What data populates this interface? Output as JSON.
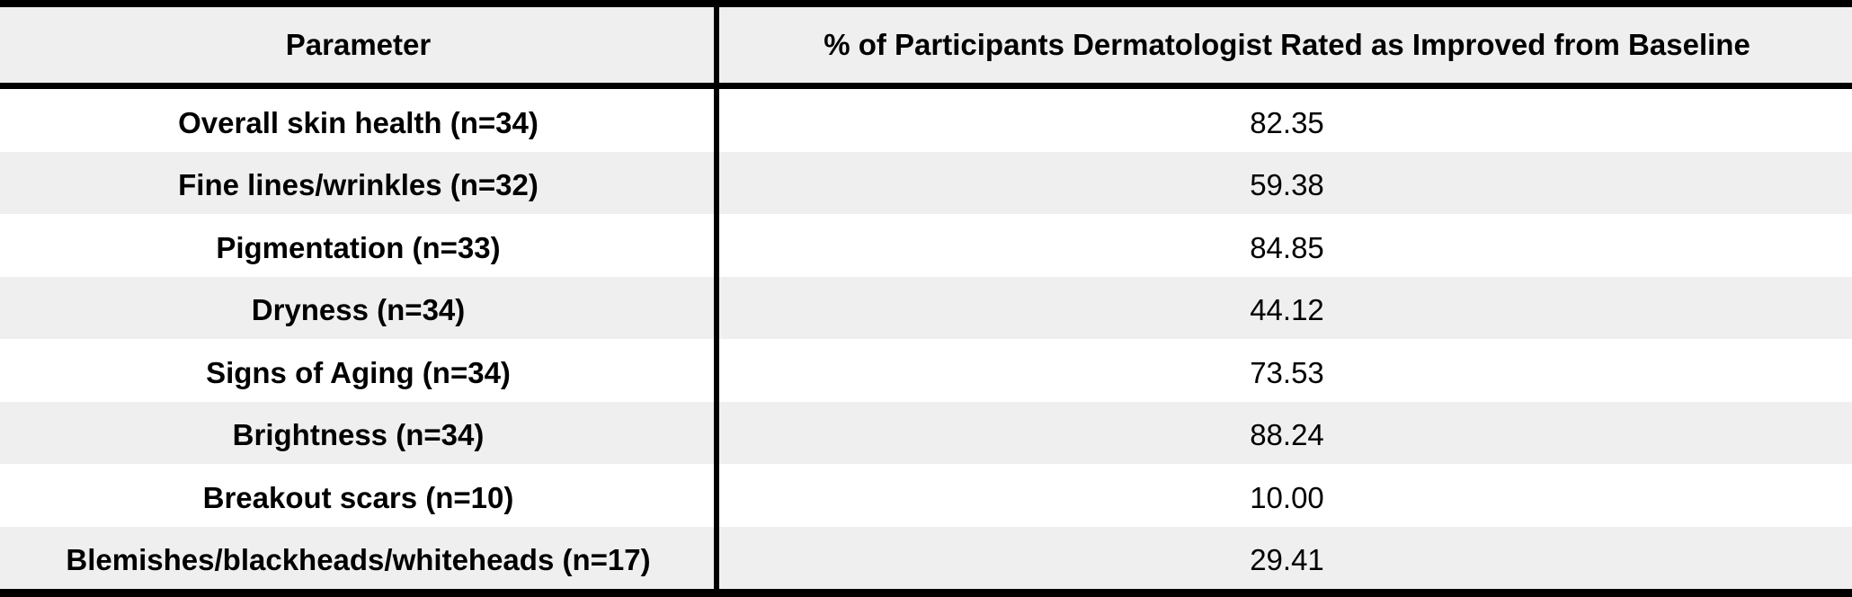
{
  "table": {
    "headers": {
      "parameter": "Parameter",
      "percent": "% of Participants Dermatologist Rated as Improved from Baseline"
    },
    "rows": [
      {
        "parameter": "Overall skin health (n=34)",
        "value": "82.35"
      },
      {
        "parameter": "Fine lines/wrinkles (n=32)",
        "value": "59.38"
      },
      {
        "parameter": "Pigmentation (n=33)",
        "value": "84.85"
      },
      {
        "parameter": "Dryness (n=34)",
        "value": "44.12"
      },
      {
        "parameter": "Signs of Aging (n=34)",
        "value": "73.53"
      },
      {
        "parameter": "Brightness (n=34)",
        "value": "88.24"
      },
      {
        "parameter": "Breakout scars (n=10)",
        "value": "10.00"
      },
      {
        "parameter": "Blemishes/blackheads/whiteheads (n=17)",
        "value": "29.41"
      }
    ],
    "colors": {
      "stripe": "#efefef",
      "rule": "#000000"
    }
  }
}
